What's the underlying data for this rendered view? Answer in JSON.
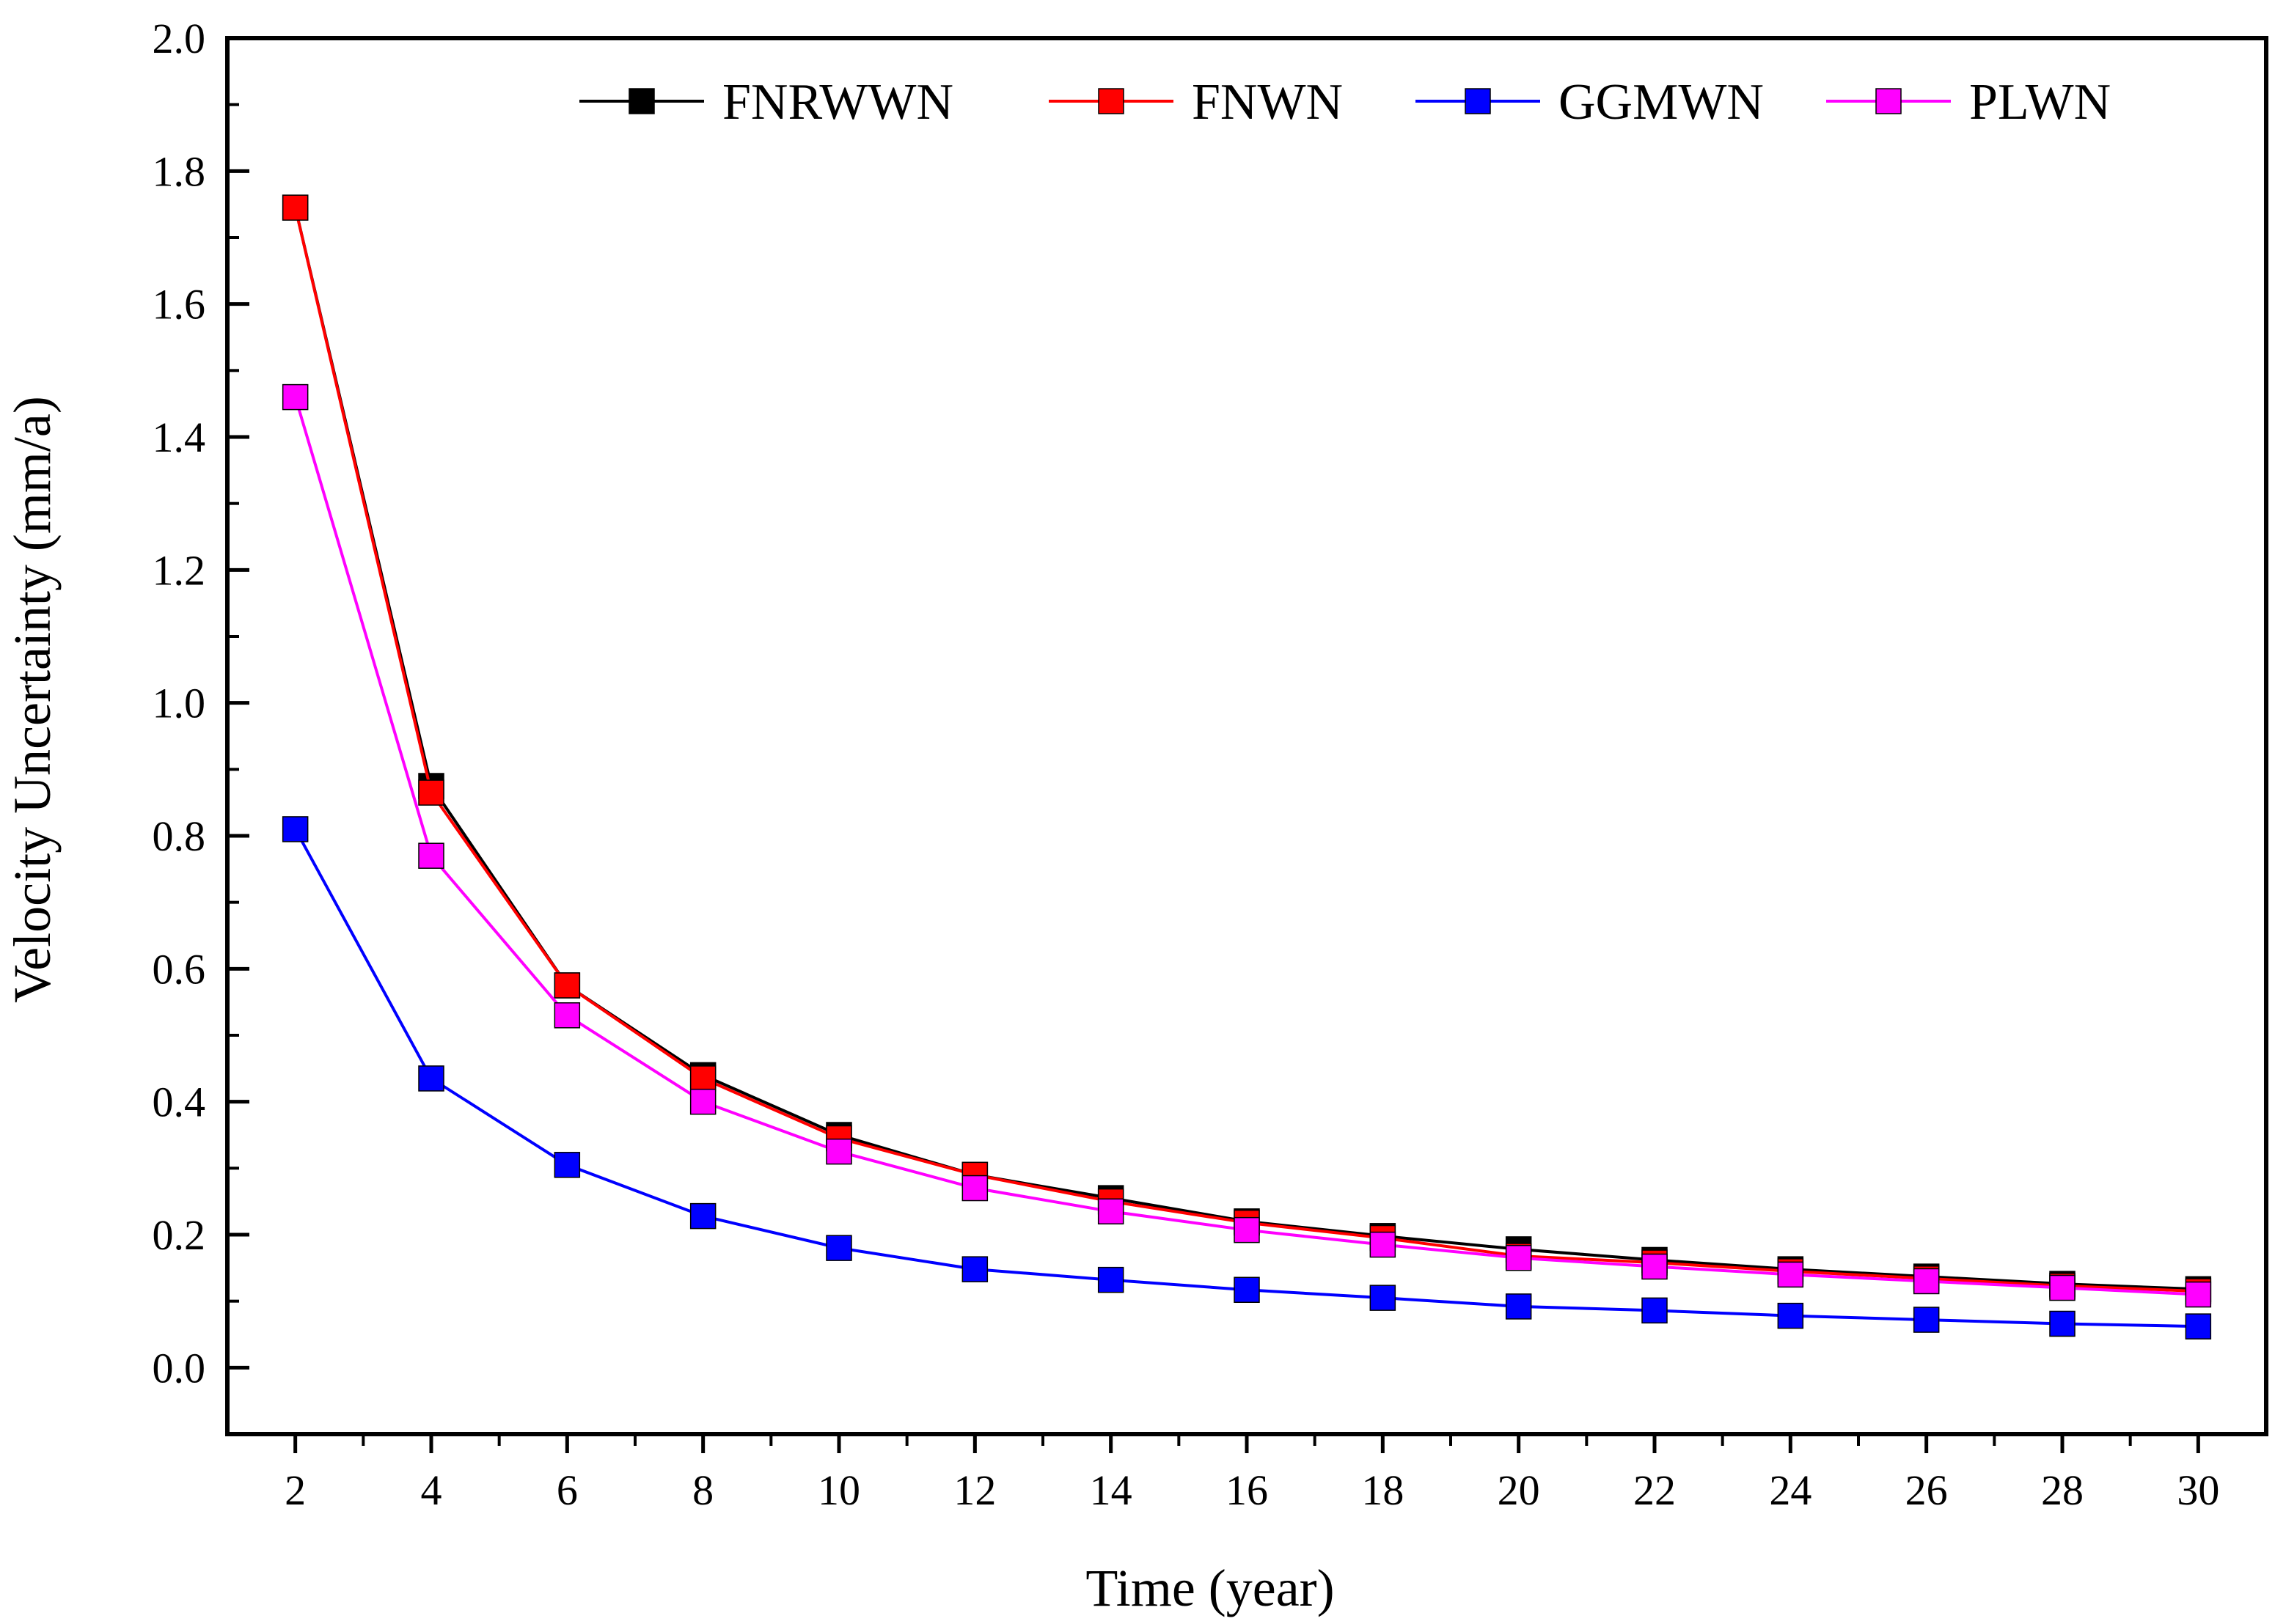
{
  "chart_data": {
    "type": "line",
    "title": "",
    "xlabel": "Time (year)",
    "ylabel": "Velocity Uncertainty (mm/a)",
    "x": [
      2,
      4,
      6,
      8,
      10,
      12,
      14,
      16,
      18,
      20,
      22,
      24,
      26,
      28,
      30
    ],
    "xlim": [
      1.0,
      31.0
    ],
    "ylim": [
      -0.1,
      2.0
    ],
    "x_ticks": [
      "2",
      "4",
      "6",
      "8",
      "10",
      "12",
      "14",
      "16",
      "18",
      "20",
      "22",
      "24",
      "26",
      "28",
      "30"
    ],
    "y_ticks": [
      "0.0",
      "0.2",
      "0.4",
      "0.6",
      "0.8",
      "1.0",
      "1.2",
      "1.4",
      "1.6",
      "1.8",
      "2.0"
    ],
    "grid": false,
    "legend_position": "top",
    "series": [
      {
        "name": "FNRWWN",
        "color": "#000000",
        "marker": "square",
        "values": [
          1.745,
          0.875,
          0.575,
          0.44,
          0.35,
          0.29,
          0.255,
          0.22,
          0.198,
          0.178,
          0.162,
          0.148,
          0.137,
          0.126,
          0.118
        ]
      },
      {
        "name": "FNWN",
        "color": "#ff0000",
        "marker": "square",
        "values": [
          1.745,
          0.865,
          0.575,
          0.435,
          0.345,
          0.29,
          0.25,
          0.218,
          0.195,
          0.168,
          0.158,
          0.145,
          0.134,
          0.123,
          0.115
        ]
      },
      {
        "name": "GGMWN",
        "color": "#0000ff",
        "marker": "square",
        "values": [
          0.81,
          0.435,
          0.305,
          0.228,
          0.18,
          0.148,
          0.132,
          0.117,
          0.105,
          0.092,
          0.086,
          0.078,
          0.072,
          0.066,
          0.062
        ]
      },
      {
        "name": "PLWN",
        "color": "#ff00ff",
        "marker": "square",
        "values": [
          1.46,
          0.77,
          0.53,
          0.4,
          0.325,
          0.27,
          0.235,
          0.207,
          0.185,
          0.165,
          0.152,
          0.14,
          0.13,
          0.12,
          0.11
        ]
      }
    ]
  }
}
